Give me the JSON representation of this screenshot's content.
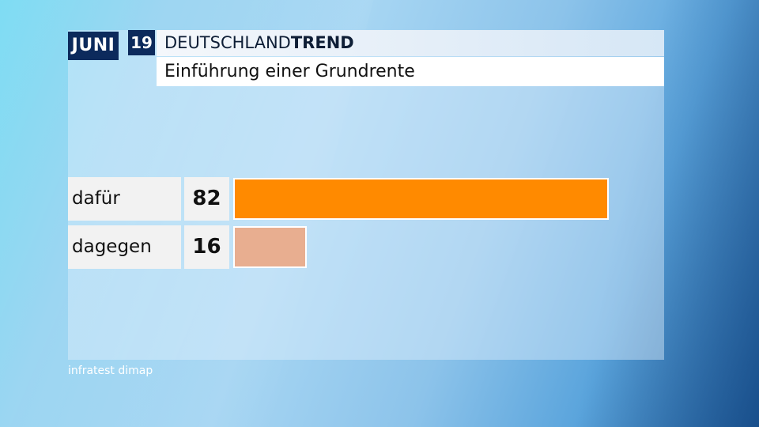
{
  "header": {
    "month": "JUNI",
    "year": "19",
    "brand_regular": "DEUTSCHLAND",
    "brand_bold": "TREND",
    "title": "Einführung einer Grundrente"
  },
  "source": "infratest dimap",
  "colors": {
    "navy": "#0c2a5c",
    "bar_primary": "#ff8a00",
    "bar_secondary": "#e8ae90"
  },
  "chart_data": {
    "type": "bar",
    "orientation": "horizontal",
    "title": "Einführung einer Grundrente",
    "categories": [
      "dafür",
      "dagegen"
    ],
    "values": [
      82,
      16
    ],
    "colors": [
      "#ff8a00",
      "#e8ae90"
    ],
    "xlim": [
      0,
      100
    ]
  }
}
